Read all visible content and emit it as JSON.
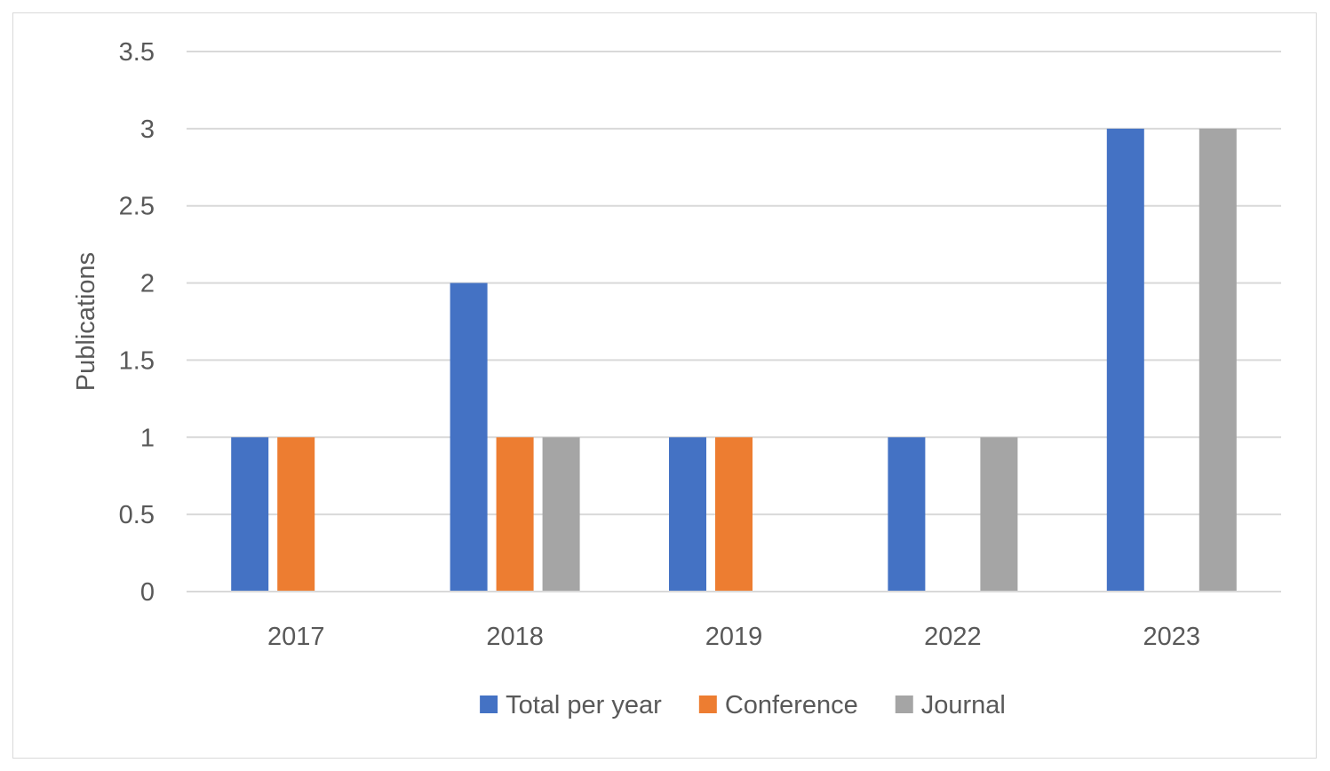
{
  "chart_data": {
    "type": "bar",
    "title": "",
    "xlabel": "",
    "ylabel": "Publications",
    "categories": [
      "2017",
      "2018",
      "2019",
      "2022",
      "2023"
    ],
    "series": [
      {
        "name": "Total per year",
        "color": "#4472C4",
        "values": [
          1,
          2,
          1,
          1,
          3
        ]
      },
      {
        "name": "Conference",
        "color": "#ED7D31",
        "values": [
          1,
          1,
          1,
          0,
          0
        ]
      },
      {
        "name": "Journal",
        "color": "#A5A5A5",
        "values": [
          0,
          1,
          0,
          1,
          3
        ]
      }
    ],
    "ylim": [
      0,
      3.5
    ],
    "yticks": [
      "0",
      "0.5",
      "1",
      "1.5",
      "2",
      "2.5",
      "3",
      "3.5"
    ],
    "grid": true,
    "legend_position": "bottom"
  }
}
